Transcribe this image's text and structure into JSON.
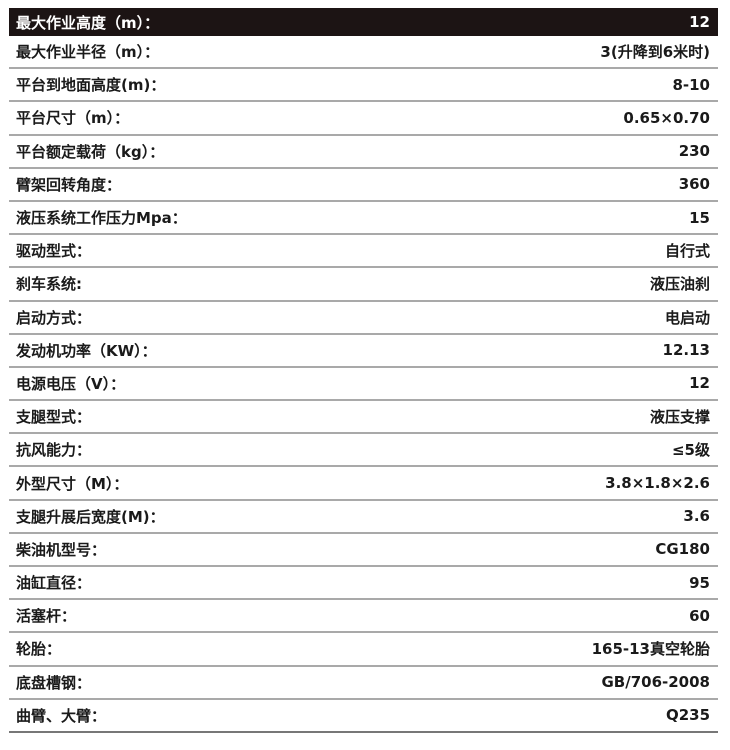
{
  "specs": [
    {
      "label": "最大作业高度（m）：",
      "value": "12"
    },
    {
      "label": "最大作业半径（m）：",
      "value": "3(升降到6米时)"
    },
    {
      "label": "平台到地面高度(m)：",
      "value": "8-10"
    },
    {
      "label": "平台尺寸（m）：",
      "value": "0.65×0.70"
    },
    {
      "label": "平台额定载荷（kg）：",
      "value": "230"
    },
    {
      "label": "臂架回转角度：",
      "value": "360"
    },
    {
      "label": "液压系统工作压力Mpa：",
      "value": "15"
    },
    {
      "label": "驱动型式：",
      "value": "自行式"
    },
    {
      "label": "刹车系统:",
      "value": "液压油刹"
    },
    {
      "label": "启动方式：",
      "value": "电启动"
    },
    {
      "label": "发动机功率（KW）：",
      "value": "12.13"
    },
    {
      "label": "电源电压（V）：",
      "value": "12"
    },
    {
      "label": "支腿型式：",
      "value": "液压支撑"
    },
    {
      "label": "抗风能力：",
      "value": "≤5级"
    },
    {
      "label": "外型尺寸（M）：",
      "value": "3.8×1.8×2.6"
    },
    {
      "label": "支腿升展后宽度(M)：",
      "value": "3.6"
    },
    {
      "label": "柴油机型号：",
      "value": "CG180"
    },
    {
      "label": "油缸直径：",
      "value": "95"
    },
    {
      "label": "活塞杆：",
      "value": "60"
    },
    {
      "label": "轮胎：",
      "value": "165-13真空轮胎"
    },
    {
      "label": "底盘槽钢：",
      "value": "GB/706-2008"
    },
    {
      "label": "曲臂、大臂：",
      "value": "Q235"
    }
  ],
  "colors": {
    "header_bg": "#1c1414",
    "divider": "#a9a9a9"
  }
}
